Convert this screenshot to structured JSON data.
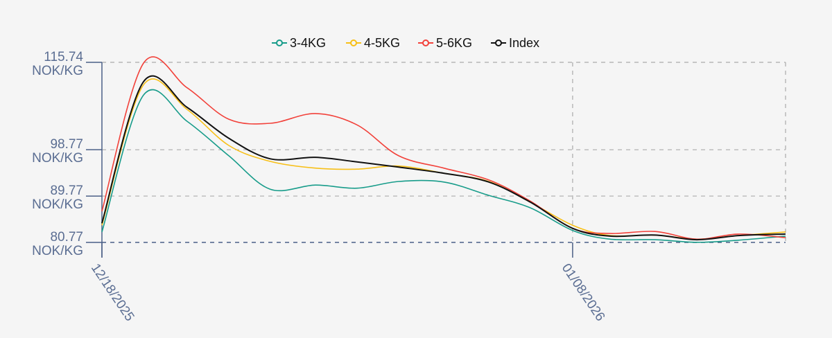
{
  "chart_data": {
    "type": "line",
    "title": "",
    "xlabel": "",
    "ylabel": "",
    "x_unit": "days since 12/18/2025",
    "x": [
      0,
      1.86,
      3.8,
      5.66,
      7.51,
      9.52,
      11.38,
      13.24,
      15.25,
      17.26,
      19.11,
      21,
      22.67,
      24.68,
      26.54,
      28.4,
      30.5
    ],
    "xlim": [
      0,
      30.5
    ],
    "ylim": [
      80.77,
      115.74
    ],
    "y_ticks": [
      {
        "value": 115.74,
        "label": "115.74",
        "unit": "NOK/KG"
      },
      {
        "value": 98.77,
        "label": "98.77",
        "unit": "NOK/KG"
      },
      {
        "value": 89.77,
        "label": "89.77",
        "unit": "NOK/KG"
      },
      {
        "value": 80.77,
        "label": "80.77",
        "unit": "NOK/KG"
      }
    ],
    "x_ticks": [
      {
        "value": 0,
        "label": "12/18/2025"
      },
      {
        "value": 21,
        "label": "01/08/2026"
      }
    ],
    "grid": true,
    "legend_position": "top-center",
    "series": [
      {
        "name": "3-4KG",
        "color": "#179c8a",
        "values": [
          82.8,
          109.4,
          104.3,
          97.6,
          91.1,
          91.9,
          91.3,
          92.6,
          92.5,
          89.9,
          87.5,
          83.1,
          81.4,
          81.3,
          80.8,
          81.2,
          82.0
        ]
      },
      {
        "name": "4-5KG",
        "color": "#f7bf16",
        "values": [
          84.1,
          111.4,
          106.6,
          99.6,
          96.5,
          95.2,
          95.0,
          95.6,
          94.2,
          92.6,
          88.6,
          84.1,
          82.1,
          82.2,
          81.4,
          82.1,
          82.8
        ]
      },
      {
        "name": "5-6KG",
        "color": "#f2413a",
        "values": [
          86.8,
          115.6,
          110.8,
          104.7,
          103.9,
          105.8,
          103.6,
          97.6,
          95.2,
          92.9,
          88.8,
          83.5,
          82.5,
          82.9,
          81.4,
          82.4,
          81.7
        ]
      },
      {
        "name": "Index",
        "color": "#111111",
        "values": [
          84.5,
          112.0,
          107.0,
          101.0,
          97.0,
          97.3,
          96.4,
          95.4,
          94.2,
          92.5,
          88.6,
          83.5,
          82.0,
          82.2,
          81.3,
          82.1,
          82.4
        ]
      }
    ]
  }
}
